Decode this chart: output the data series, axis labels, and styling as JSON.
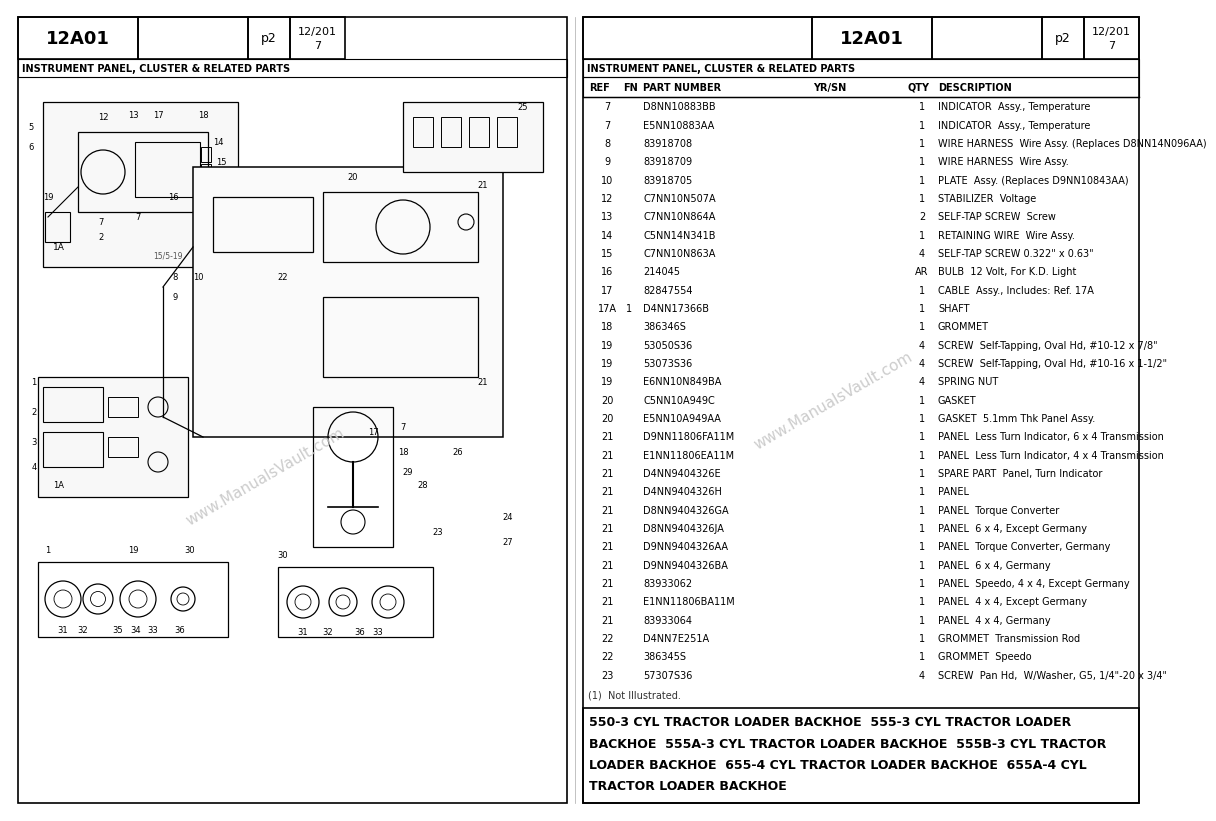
{
  "page_id": "12A01",
  "page_num": "p2",
  "date1": "12/201",
  "date2": "7",
  "title": "INSTRUMENT PANEL, CLUSTER & RELATED PARTS",
  "bg_color": "#ffffff",
  "parts": [
    [
      "7",
      "",
      "D8NN10883BB",
      "",
      "1",
      "INDICATOR  Assy., Temperature"
    ],
    [
      "7",
      "",
      "E5NN10883AA",
      "",
      "1",
      "INDICATOR  Assy., Temperature"
    ],
    [
      "8",
      "",
      "83918708",
      "",
      "1",
      "WIRE HARNESS  Wire Assy. (Replaces D8NN14N096AA)"
    ],
    [
      "9",
      "",
      "83918709",
      "",
      "1",
      "WIRE HARNESS  Wire Assy."
    ],
    [
      "10",
      "",
      "83918705",
      "",
      "1",
      "PLATE  Assy. (Replaces D9NN10843AA)"
    ],
    [
      "12",
      "",
      "C7NN10N507A",
      "",
      "1",
      "STABILIZER  Voltage"
    ],
    [
      "13",
      "",
      "C7NN10N864A",
      "",
      "2",
      "SELF-TAP SCREW  Screw"
    ],
    [
      "14",
      "",
      "C5NN14N341B",
      "",
      "1",
      "RETAINING WIRE  Wire Assy."
    ],
    [
      "15",
      "",
      "C7NN10N863A",
      "",
      "4",
      "SELF-TAP SCREW 0.322\" x 0.63\""
    ],
    [
      "16",
      "",
      "214045",
      "",
      "AR",
      "BULB  12 Volt, For K.D. Light"
    ],
    [
      "17",
      "",
      "82847554",
      "",
      "1",
      "CABLE  Assy., Includes: Ref. 17A"
    ],
    [
      "17A",
      "1",
      "D4NN17366B",
      "",
      "1",
      "SHAFT"
    ],
    [
      "18",
      "",
      "386346S",
      "",
      "1",
      "GROMMET"
    ],
    [
      "19",
      "",
      "53050S36",
      "",
      "4",
      "SCREW  Self-Tapping, Oval Hd, #10-12 x 7/8\""
    ],
    [
      "19",
      "",
      "53073S36",
      "",
      "4",
      "SCREW  Self-Tapping, Oval Hd, #10-16 x 1-1/2\""
    ],
    [
      "19",
      "",
      "E6NN10N849BA",
      "",
      "4",
      "SPRING NUT"
    ],
    [
      "20",
      "",
      "C5NN10A949C",
      "",
      "1",
      "GASKET"
    ],
    [
      "20",
      "",
      "E5NN10A949AA",
      "",
      "1",
      "GASKET  5.1mm Thk Panel Assy."
    ],
    [
      "21",
      "",
      "D9NN11806FA11M",
      "",
      "1",
      "PANEL  Less Turn Indicator, 6 x 4 Transmission"
    ],
    [
      "21",
      "",
      "E1NN11806EA11M",
      "",
      "1",
      "PANEL  Less Turn Indicator, 4 x 4 Transmission"
    ],
    [
      "21",
      "",
      "D4NN9404326E",
      "",
      "1",
      "SPARE PART  Panel, Turn Indicator"
    ],
    [
      "21",
      "",
      "D4NN9404326H",
      "",
      "1",
      "PANEL"
    ],
    [
      "21",
      "",
      "D8NN9404326GA",
      "",
      "1",
      "PANEL  Torque Converter"
    ],
    [
      "21",
      "",
      "D8NN9404326JA",
      "",
      "1",
      "PANEL  6 x 4, Except Germany"
    ],
    [
      "21",
      "",
      "D9NN9404326AA",
      "",
      "1",
      "PANEL  Torque Converter, Germany"
    ],
    [
      "21",
      "",
      "D9NN9404326BA",
      "",
      "1",
      "PANEL  6 x 4, Germany"
    ],
    [
      "21",
      "",
      "83933062",
      "",
      "1",
      "PANEL  Speedo, 4 x 4, Except Germany"
    ],
    [
      "21",
      "",
      "E1NN11806BA11M",
      "",
      "1",
      "PANEL  4 x 4, Except Germany"
    ],
    [
      "21",
      "",
      "83933064",
      "",
      "1",
      "PANEL  4 x 4, Germany"
    ],
    [
      "22",
      "",
      "D4NN7E251A",
      "",
      "1",
      "GROMMET  Transmission Rod"
    ],
    [
      "22",
      "",
      "386345S",
      "",
      "1",
      "GROMMET  Speedo"
    ],
    [
      "23",
      "",
      "57307S36",
      "",
      "4",
      "SCREW  Pan Hd,  W/Washer, G5, 1/4\"-20 x 3/4\""
    ]
  ],
  "footnote": "(1)  Not Illustrated.",
  "footer_lines": [
    "550-3 CYL TRACTOR LOADER BACKHOE  555-3 CYL TRACTOR LOADER",
    "BACKHOE  555A-3 CYL TRACTOR LOADER BACKHOE  555B-3 CYL TRACTOR",
    "LOADER BACKHOE  655-4 CYL TRACTOR LOADER BACKHOE  655A-4 CYL",
    "TRACTOR LOADER BACKHOE"
  ],
  "watermark": "www.ManualsVault.com"
}
